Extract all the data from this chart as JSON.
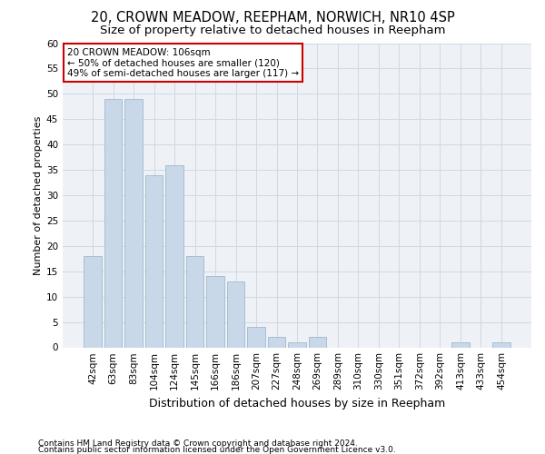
{
  "title": "20, CROWN MEADOW, REEPHAM, NORWICH, NR10 4SP",
  "subtitle": "Size of property relative to detached houses in Reepham",
  "xlabel_bottom": "Distribution of detached houses by size in Reepham",
  "ylabel": "Number of detached properties",
  "categories": [
    "42sqm",
    "63sqm",
    "83sqm",
    "104sqm",
    "124sqm",
    "145sqm",
    "166sqm",
    "186sqm",
    "207sqm",
    "227sqm",
    "248sqm",
    "269sqm",
    "289sqm",
    "310sqm",
    "330sqm",
    "351sqm",
    "372sqm",
    "392sqm",
    "413sqm",
    "433sqm",
    "454sqm"
  ],
  "values": [
    18,
    49,
    49,
    34,
    36,
    18,
    14,
    13,
    4,
    2,
    1,
    2,
    0,
    0,
    0,
    0,
    0,
    0,
    1,
    0,
    1
  ],
  "bar_color": "#c8d8e8",
  "bar_edge_color": "#a0b8cc",
  "ylim": [
    0,
    60
  ],
  "yticks": [
    0,
    5,
    10,
    15,
    20,
    25,
    30,
    35,
    40,
    45,
    50,
    55,
    60
  ],
  "annotation_title": "20 CROWN MEADOW: 106sqm",
  "annotation_line1": "← 50% of detached houses are smaller (120)",
  "annotation_line2": "49% of semi-detached houses are larger (117) →",
  "annotation_box_color": "#ffffff",
  "annotation_box_edge": "#cc0000",
  "footer1": "Contains HM Land Registry data © Crown copyright and database right 2024.",
  "footer2": "Contains public sector information licensed under the Open Government Licence v3.0.",
  "bg_color": "#eef2f7",
  "grid_color": "#d0d8e4",
  "title_fontsize": 10.5,
  "subtitle_fontsize": 9.5,
  "axis_label_fontsize": 8,
  "tick_fontsize": 7.5,
  "annotation_fontsize": 7.5,
  "xlabel_fontsize": 9,
  "footer_fontsize": 6.5
}
